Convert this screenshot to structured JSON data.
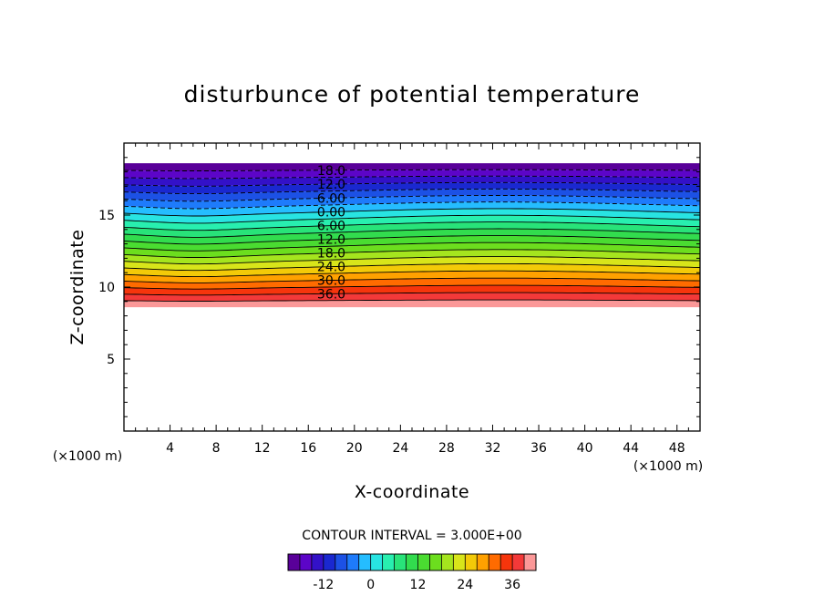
{
  "chart_data": {
    "type": "contour",
    "title": "disturbunce of potential temperature",
    "xlabel": "X-coordinate",
    "ylabel": "Z-coordinate",
    "x_unit": "(×1000 m)",
    "y_unit": "(×1000 m)",
    "xlim": [
      0,
      50
    ],
    "ylim": [
      0,
      20
    ],
    "xticks": [
      "4",
      "8",
      "12",
      "16",
      "20",
      "24",
      "28",
      "32",
      "36",
      "40",
      "44",
      "48"
    ],
    "yticks": [
      "5",
      "10",
      "15"
    ],
    "contour_interval_label": "CONTOUR INTERVAL = 3.000E+00",
    "contour_labels": [
      "18.0",
      "12.0",
      "6.00",
      "0.00",
      "6.00",
      "12.0",
      "18.0",
      "24.0",
      "30.0",
      "36.0"
    ],
    "contour_label_values": [
      -18,
      -12,
      -6,
      0,
      6,
      12,
      18,
      24,
      30,
      36
    ],
    "colorbar_ticks": [
      "-12",
      "0",
      "12",
      "24",
      "36"
    ],
    "colorbar_range": [
      -21,
      42
    ],
    "levels": [
      -21,
      -18,
      -15,
      -12,
      -9,
      -6,
      -3,
      0,
      3,
      6,
      9,
      12,
      15,
      18,
      21,
      24,
      27,
      30,
      33,
      36,
      39,
      42
    ],
    "negative_contours": "dashed",
    "filled_region_z_range": [
      8.6,
      18.6
    ],
    "colormap": "rainbow"
  }
}
